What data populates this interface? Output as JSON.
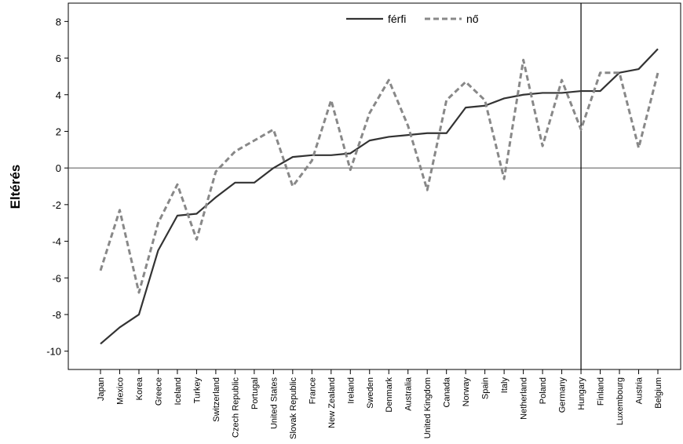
{
  "chart_data": {
    "type": "line",
    "xlabel": "",
    "ylabel": "Eltérés",
    "ylim": [
      -11,
      9
    ],
    "yticks": [
      -10,
      -8,
      -6,
      -4,
      -2,
      0,
      2,
      4,
      6,
      8
    ],
    "categories": [
      "Japan",
      "Mexico",
      "Korea",
      "Greece",
      "Iceland",
      "Turkey",
      "Switzerland",
      "Czech Republic",
      "Portugal",
      "United States",
      "Slovak Republic",
      "France",
      "New Zealand",
      "Ireland",
      "Sweden",
      "Denmark",
      "Australia",
      "United Kingdom",
      "Canada",
      "Norway",
      "Spain",
      "Italy",
      "Netherland",
      "Poland",
      "Germany",
      "Hungary",
      "Finland",
      "Luxembourg",
      "Austria",
      "Belgium"
    ],
    "series": [
      {
        "name": "férfi",
        "style": "solid",
        "color": "#333333",
        "values": [
          -9.6,
          -8.7,
          -8.0,
          -4.5,
          -2.6,
          -2.5,
          -1.6,
          -0.8,
          -0.8,
          0.0,
          0.6,
          0.7,
          0.7,
          0.8,
          1.5,
          1.7,
          1.8,
          1.9,
          1.9,
          3.3,
          3.4,
          3.8,
          4.0,
          4.1,
          4.1,
          4.2,
          4.2,
          5.2,
          5.4,
          6.5
        ]
      },
      {
        "name": "nő",
        "style": "dashed",
        "color": "#888888",
        "values": [
          -5.6,
          -2.3,
          -6.8,
          -3.0,
          -0.9,
          -3.9,
          -0.2,
          0.9,
          1.5,
          2.1,
          -1.0,
          0.4,
          3.7,
          -0.1,
          3.0,
          4.8,
          2.3,
          -1.2,
          3.7,
          4.7,
          3.7,
          -0.6,
          5.9,
          1.2,
          4.8,
          2.1,
          5.2,
          5.2,
          1.1,
          5.2
        ]
      }
    ],
    "reference_lines": {
      "y": 0,
      "category": "Hungary"
    },
    "legend": {
      "position": "top-center"
    },
    "grid": false
  }
}
